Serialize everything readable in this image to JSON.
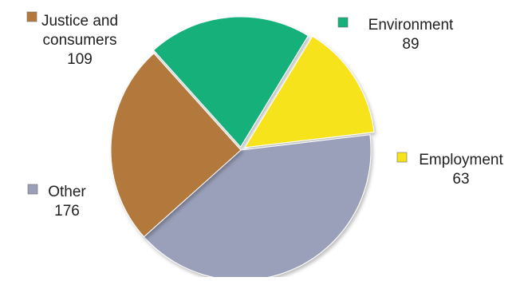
{
  "chart_data": {
    "type": "pie",
    "categories": [
      "Justice and consumers",
      "Environment",
      "Employment",
      "Other"
    ],
    "values": [
      109,
      89,
      63,
      176
    ],
    "colors": [
      "#b3783a",
      "#16b07a",
      "#f7e31c",
      "#9aa0ba"
    ],
    "legend": "labels-beside-slices",
    "labels": [
      {
        "lines": [
          "Justice and",
          "consumers"
        ],
        "value": "109"
      },
      {
        "lines": [
          "Environment"
        ],
        "value": "89"
      },
      {
        "lines": [
          "Employment"
        ],
        "value": "63"
      },
      {
        "lines": [
          "Other"
        ],
        "value": "176"
      }
    ]
  }
}
